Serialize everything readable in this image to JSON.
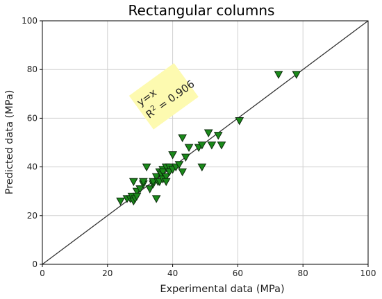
{
  "chart_data": {
    "type": "scatter",
    "title": "Rectangular columns",
    "xlabel": "Experimental data (MPa)",
    "ylabel": "Predicted data (MPa)",
    "xlim": [
      0,
      100
    ],
    "ylim": [
      0,
      100
    ],
    "xticks": [
      0,
      20,
      40,
      60,
      80,
      100
    ],
    "yticks": [
      0,
      20,
      40,
      60,
      80,
      100
    ],
    "grid": true,
    "marker": "triangle-down",
    "colors": {
      "marker_fill": "#1a8a1a",
      "marker_edge": "#0d2a0d",
      "annotation_bg": "#fdfab0"
    },
    "reference_line": {
      "label": "y=x",
      "from": [
        0,
        0
      ],
      "to": [
        100,
        100
      ]
    },
    "annotation": {
      "line1": "y=x",
      "r2_prefix": "R",
      "r2_sup": "2",
      "r2_value": " = 0.906"
    },
    "series": [
      {
        "x": [
          24,
          26,
          27,
          27.5,
          28,
          28.5,
          28,
          29,
          29,
          30,
          31,
          31,
          32,
          33,
          34,
          34,
          35,
          35,
          35.5,
          36,
          36,
          36.5,
          37,
          37,
          37,
          38,
          38,
          38,
          39,
          39,
          40,
          40,
          41,
          42,
          43,
          43,
          44,
          45,
          48,
          49,
          49,
          51,
          52,
          54,
          55,
          60.5,
          72.5,
          78
        ],
        "y": [
          26,
          27,
          27,
          28,
          26,
          27,
          34,
          30,
          28,
          31,
          33,
          34,
          40,
          31,
          33,
          34,
          36,
          27,
          34,
          38,
          34,
          37,
          39,
          38,
          35,
          40,
          36,
          34,
          40,
          38,
          39,
          45,
          40,
          41,
          38,
          52,
          44,
          48,
          48,
          49,
          40,
          54,
          49,
          53,
          49,
          59,
          78,
          78
        ]
      }
    ]
  }
}
